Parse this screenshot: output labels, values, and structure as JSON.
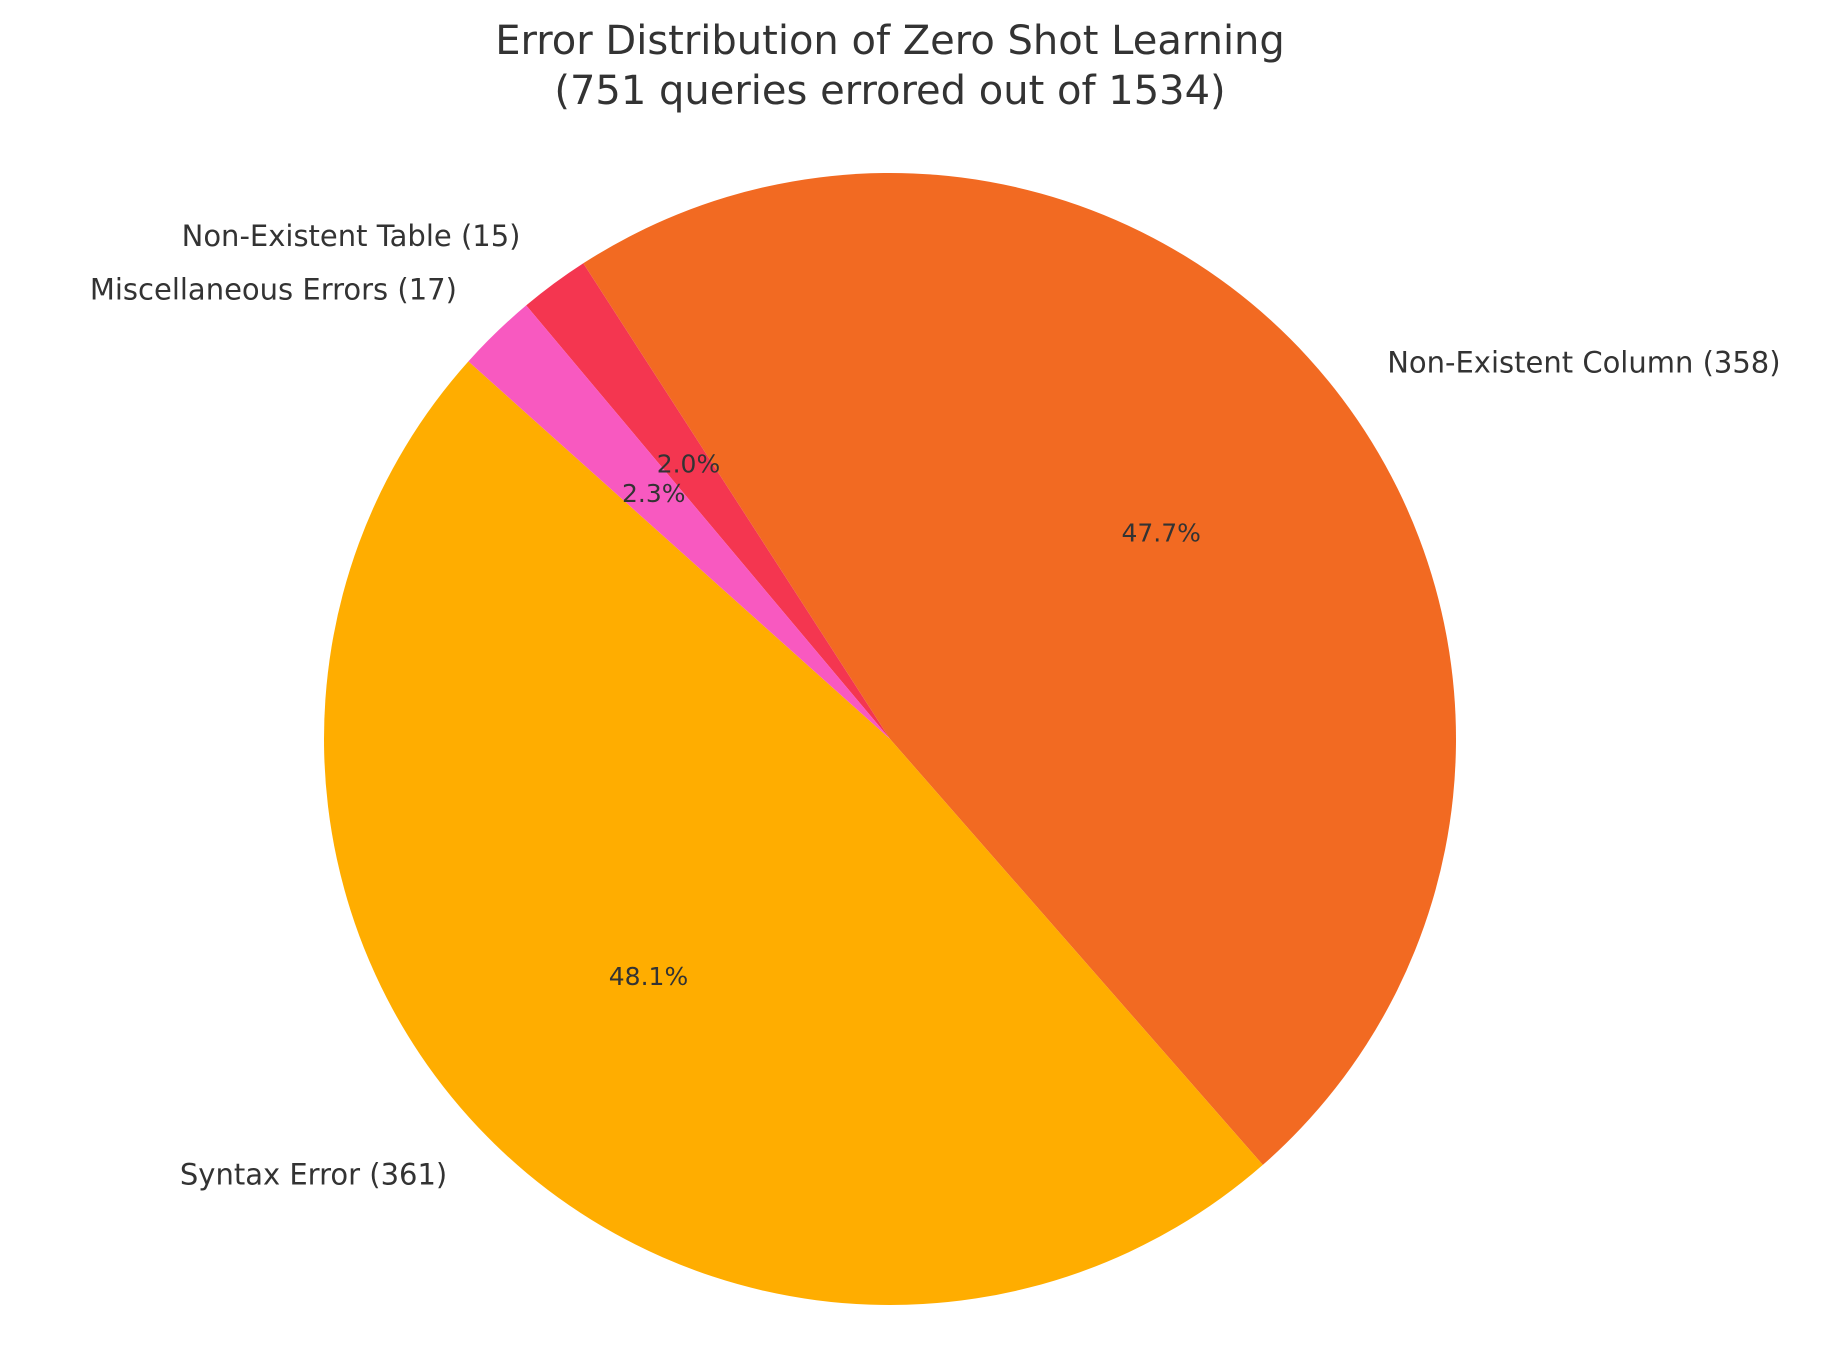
{
  "chart_data": {
    "type": "pie",
    "title": "Error Distribution of Zero Shot Learning",
    "subtitle": "(751 queries errored out of 1534)",
    "start_angle_deg": 130,
    "direction": "clockwise",
    "slices": [
      {
        "name": "Non-Existent Table",
        "value": 15,
        "percent": "2.0%",
        "label": "Non-Existent Table (15)",
        "color": "#F43650"
      },
      {
        "name": "Non-Existent Column",
        "value": 358,
        "percent": "47.7%",
        "label": "Non-Existent Column (358)",
        "color": "#F26A22"
      },
      {
        "name": "Syntax Error",
        "value": 361,
        "percent": "48.1%",
        "label": "Syntax Error (361)",
        "color": "#FFAD00"
      },
      {
        "name": "Miscellaneous Errors",
        "value": 17,
        "percent": "2.3%",
        "label": "Miscellaneous Errors (17)",
        "color": "#F859C0"
      }
    ]
  }
}
